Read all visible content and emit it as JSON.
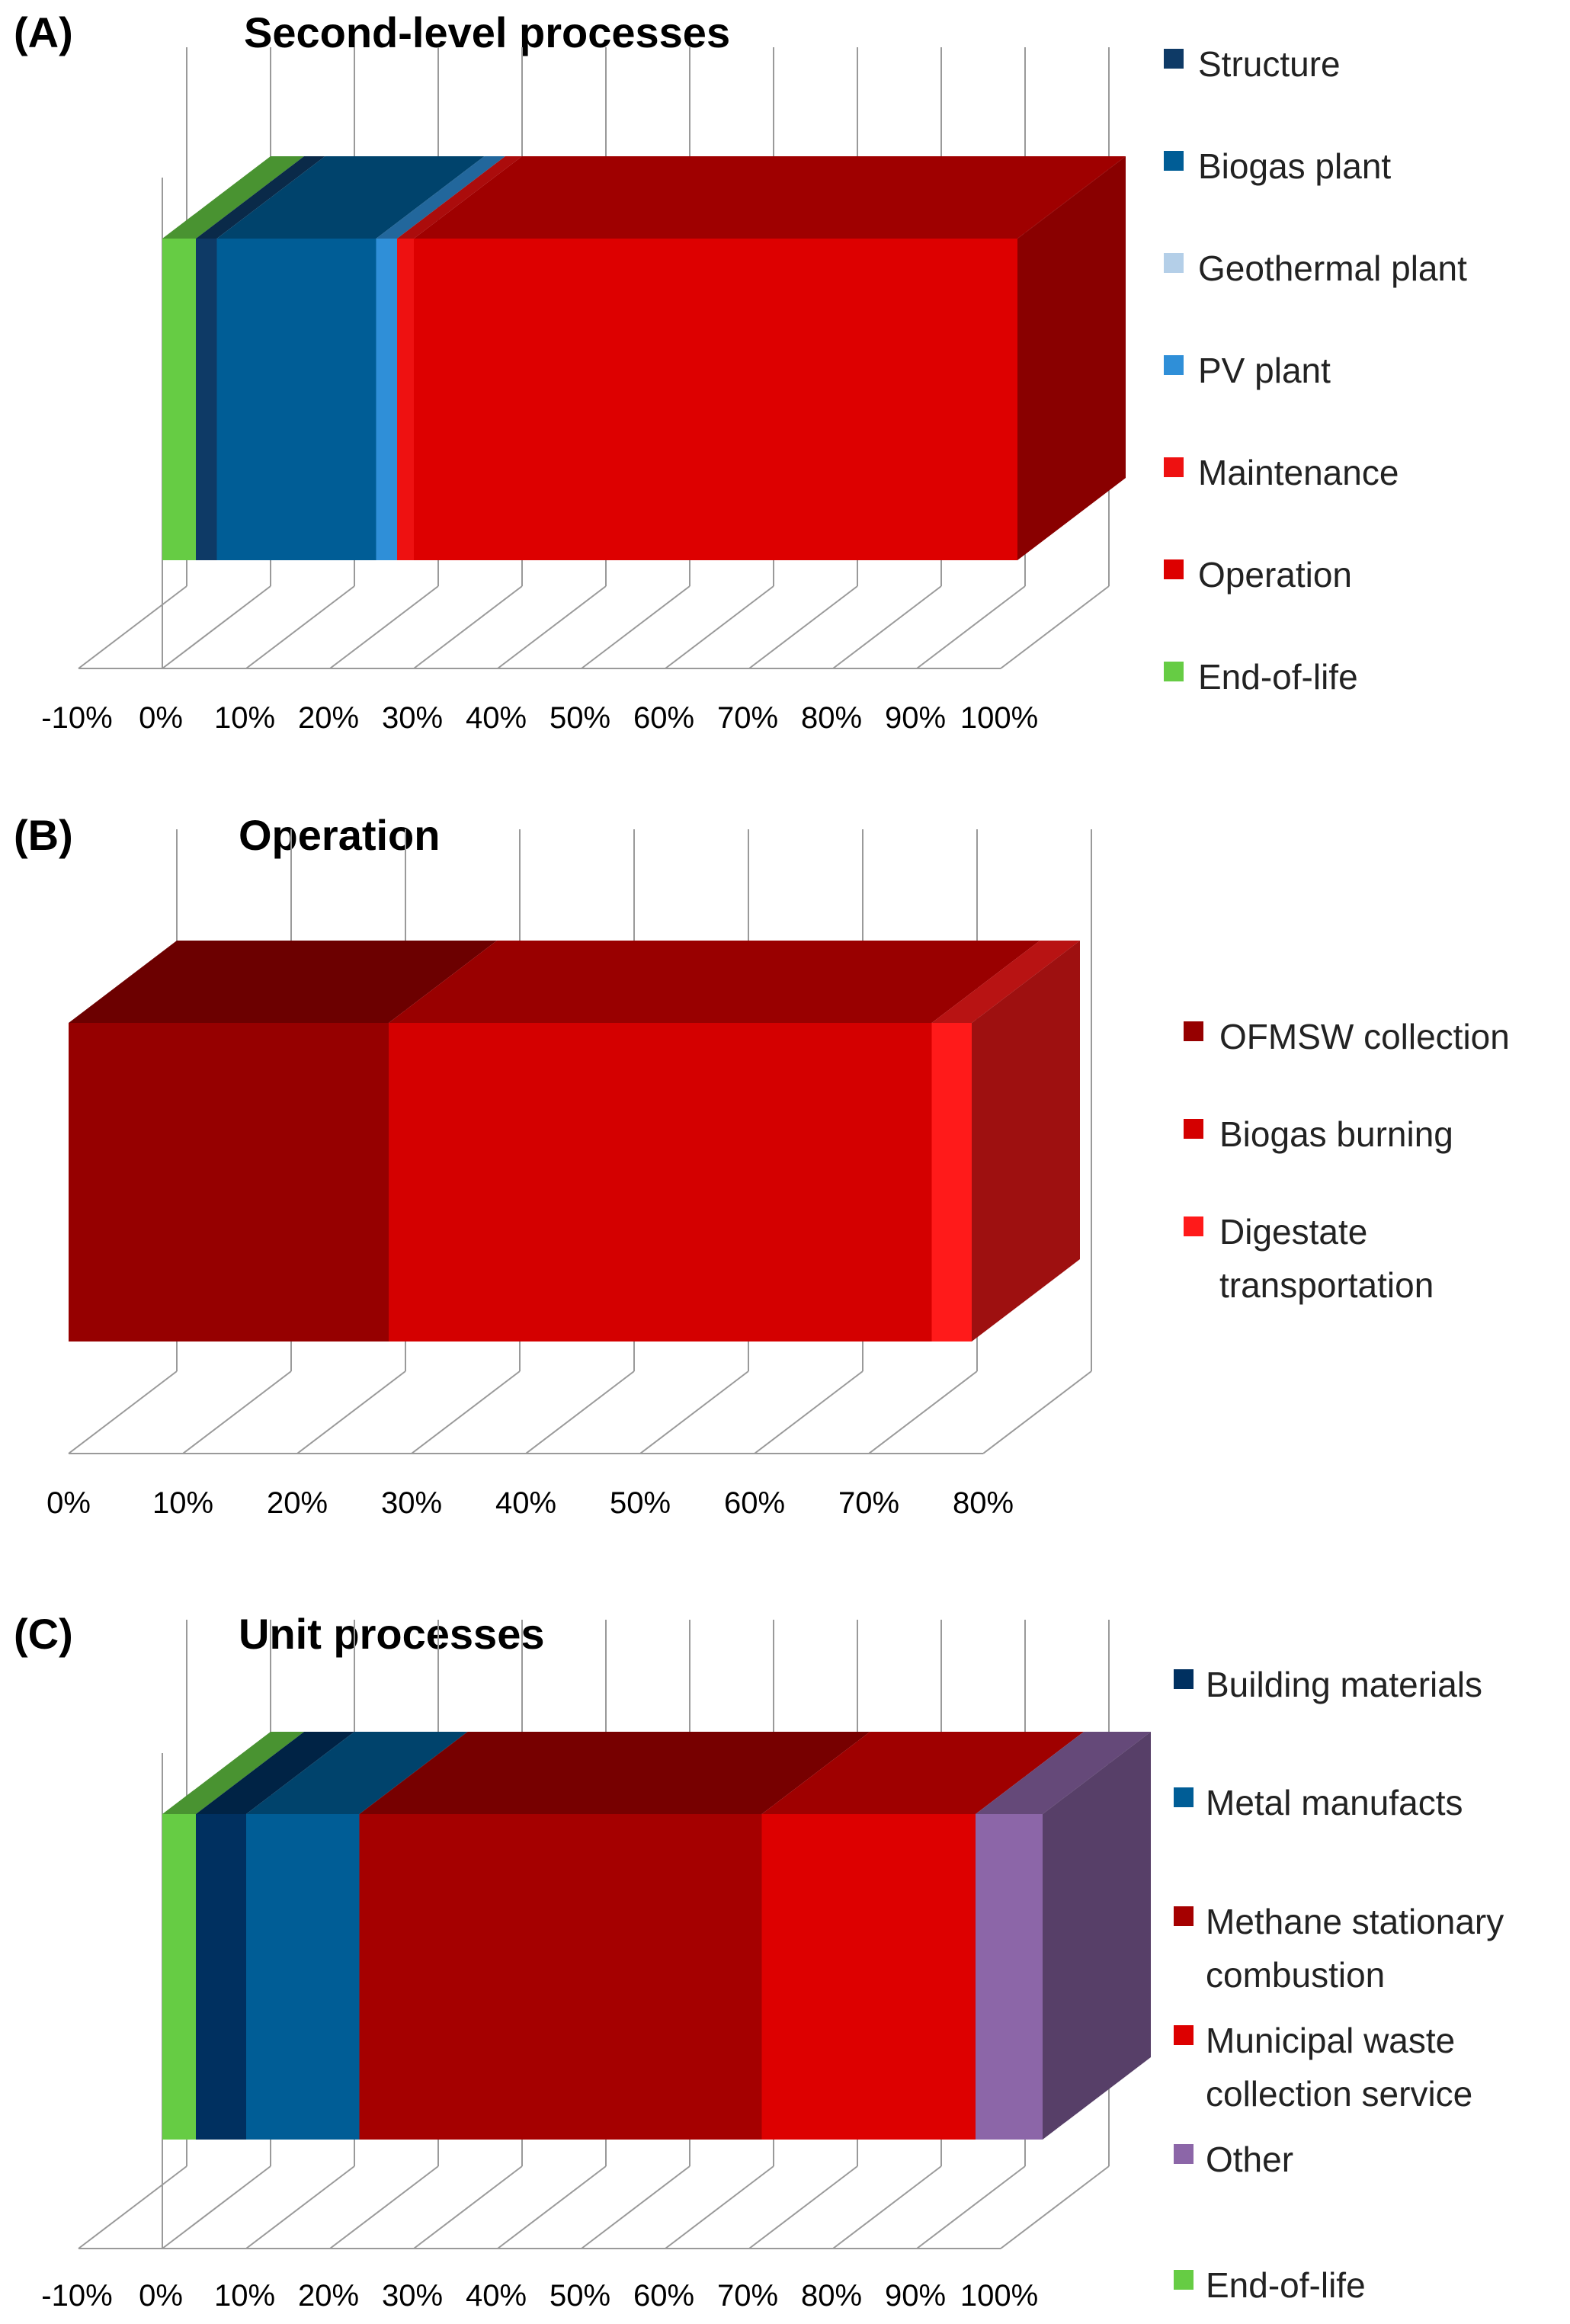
{
  "panels": [
    {
      "label": "(A)",
      "title": "Second-level processes"
    },
    {
      "label": "(B)",
      "title": "Operation"
    },
    {
      "label": "(C)",
      "title": "Unit processes"
    }
  ],
  "chart_data": [
    {
      "type": "bar",
      "subtype": "3d-stacked-horizontal-100",
      "title": "Second-level processes",
      "xlim": [
        -10,
        100
      ],
      "xticks": [
        "-10%",
        "0%",
        "10%",
        "20%",
        "30%",
        "40%",
        "50%",
        "60%",
        "70%",
        "80%",
        "90%",
        "100%"
      ],
      "legend_position": "right",
      "series": [
        {
          "name": "End-of-life",
          "value": 4,
          "color": "#66CC44",
          "shown_in_legend": true
        },
        {
          "name": "Structure",
          "value": 2.5,
          "color": "#0E3A66",
          "shown_in_legend": true
        },
        {
          "name": "Biogas plant",
          "value": 19,
          "color": "#005D96",
          "shown_in_legend": true
        },
        {
          "name": "Geothermal plant",
          "value": 0,
          "color": "#B4CFE8",
          "shown_in_legend": true
        },
        {
          "name": "PV plant",
          "value": 2.5,
          "color": "#2F8FD8",
          "shown_in_legend": true
        },
        {
          "name": "Maintenance",
          "value": 2,
          "color": "#EE1111",
          "shown_in_legend": true
        },
        {
          "name": "Operation",
          "value": 72,
          "color": "#DD0000",
          "shown_in_legend": true
        }
      ],
      "legend": [
        "Structure",
        "Biogas plant",
        "Geothermal plant",
        "PV plant",
        "Maintenance",
        "Operation",
        "End-of-life"
      ]
    },
    {
      "type": "bar",
      "subtype": "3d-stacked-horizontal",
      "title": "Operation",
      "xlim": [
        0,
        80
      ],
      "xticks": [
        "0%",
        "10%",
        "20%",
        "30%",
        "40%",
        "50%",
        "60%",
        "70%",
        "80%"
      ],
      "legend_position": "right",
      "series": [
        {
          "name": "OFMSW collection",
          "value": 28,
          "color": "#960000",
          "shown_in_legend": true
        },
        {
          "name": "Biogas burning",
          "value": 47.5,
          "color": "#D40000",
          "shown_in_legend": true
        },
        {
          "name": "Digestate transportation",
          "value": 3.5,
          "color": "#FF1A1A",
          "shown_in_legend": true
        }
      ],
      "legend": [
        "OFMSW collection",
        "Biogas burning",
        "Digestate transportation"
      ],
      "legend_lines": [
        [
          "OFMSW collection"
        ],
        [
          "Biogas burning"
        ],
        [
          "Digestate",
          "transportation"
        ]
      ]
    },
    {
      "type": "bar",
      "subtype": "3d-stacked-horizontal-100",
      "title": "Unit processes",
      "xlim": [
        -10,
        100
      ],
      "xticks": [
        "-10%",
        "0%",
        "10%",
        "20%",
        "30%",
        "40%",
        "50%",
        "60%",
        "70%",
        "80%",
        "90%",
        "100%"
      ],
      "legend_position": "right",
      "series": [
        {
          "name": "End-of-life",
          "value": 4,
          "color": "#66CC44",
          "shown_in_legend": true
        },
        {
          "name": "Building materials",
          "value": 6,
          "color": "#003060",
          "shown_in_legend": true
        },
        {
          "name": "Metal manufacts",
          "value": 13.5,
          "color": "#005D96",
          "shown_in_legend": true
        },
        {
          "name": "Methane stationary combustion",
          "value": 48,
          "color": "#A50000",
          "shown_in_legend": true
        },
        {
          "name": "Municipal waste collection service",
          "value": 25.5,
          "color": "#DD0000",
          "shown_in_legend": true
        },
        {
          "name": "Other",
          "value": 8,
          "color": "#8C66A8",
          "shown_in_legend": true
        }
      ],
      "legend": [
        "Building materials",
        "Metal manufacts",
        "Methane stationary combustion",
        "Municipal waste collection service",
        "Other",
        "End-of-life"
      ],
      "legend_lines": [
        [
          "Building materials"
        ],
        [
          "Metal manufacts"
        ],
        [
          "Methane stationary",
          "combustion"
        ],
        [
          "Municipal waste",
          "collection service"
        ],
        [
          "Other"
        ],
        [
          "End-of-life"
        ]
      ]
    }
  ]
}
